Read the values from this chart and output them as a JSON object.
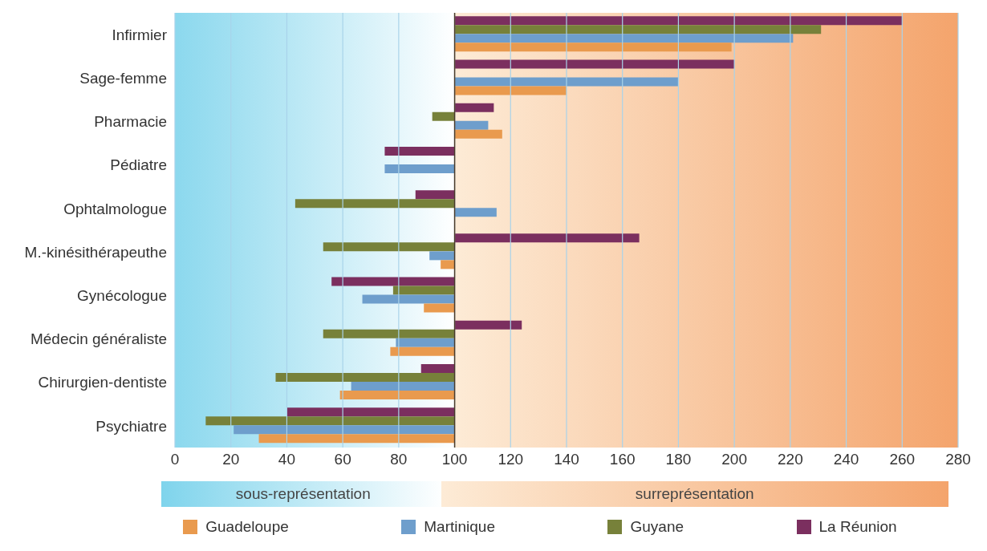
{
  "chart_data": {
    "type": "bar",
    "orientation": "horizontal",
    "categories": [
      "Infirmier",
      "Sage-femme",
      "Pharmacie",
      "Pédiatre",
      "Ophtalmologue",
      "M.-kinésithérapeuthe",
      "Gynécologue",
      "Médecin généraliste",
      "Chirurgien-dentiste",
      "Psychiatre"
    ],
    "series": [
      {
        "name": "Guadeloupe",
        "color": "#e99a4e",
        "base": [
          100,
          100,
          100,
          null,
          null,
          100,
          100,
          100,
          100,
          100
        ],
        "values": [
          99,
          40,
          17,
          null,
          null,
          -5,
          -11,
          -23,
          -41,
          -70
        ]
      },
      {
        "name": "Martinique",
        "color": "#6e9ecc",
        "base": [
          100,
          100,
          100,
          100,
          100,
          100,
          100,
          100,
          100,
          100
        ],
        "values": [
          121,
          80,
          12,
          -25,
          15,
          -9,
          -33,
          -21,
          -37,
          -79
        ]
      },
      {
        "name": "Guyane",
        "color": "#77813a",
        "base": [
          100,
          null,
          100,
          null,
          100,
          100,
          100,
          100,
          100,
          100
        ],
        "values": [
          131,
          null,
          -8,
          null,
          -57,
          -47,
          -22,
          -47,
          -64,
          -89
        ]
      },
      {
        "name": "La Réunion",
        "color": "#7b2f5f",
        "base": [
          100,
          100,
          100,
          100,
          100,
          100,
          100,
          100,
          100,
          100
        ],
        "values": [
          160,
          100,
          14,
          -25,
          -14,
          66,
          -44,
          24,
          -12,
          -60
        ]
      }
    ],
    "xlim": [
      0,
      280
    ],
    "xticks": [
      0,
      20,
      40,
      60,
      80,
      100,
      120,
      140,
      160,
      180,
      200,
      220,
      240,
      260,
      280
    ],
    "grid": "x",
    "legend": "bottom",
    "ref_lines": [
      {
        "axis": "x",
        "value": 100,
        "color": "#4a3a2a"
      }
    ],
    "bands": [
      {
        "axis": "x",
        "from": 0,
        "to": 100,
        "label": "sous-représentation",
        "color": "#7fd4ec"
      },
      {
        "axis": "x",
        "from": 100,
        "to": 280,
        "label": "surreprésentation",
        "color": "#f4a46c"
      }
    ]
  }
}
